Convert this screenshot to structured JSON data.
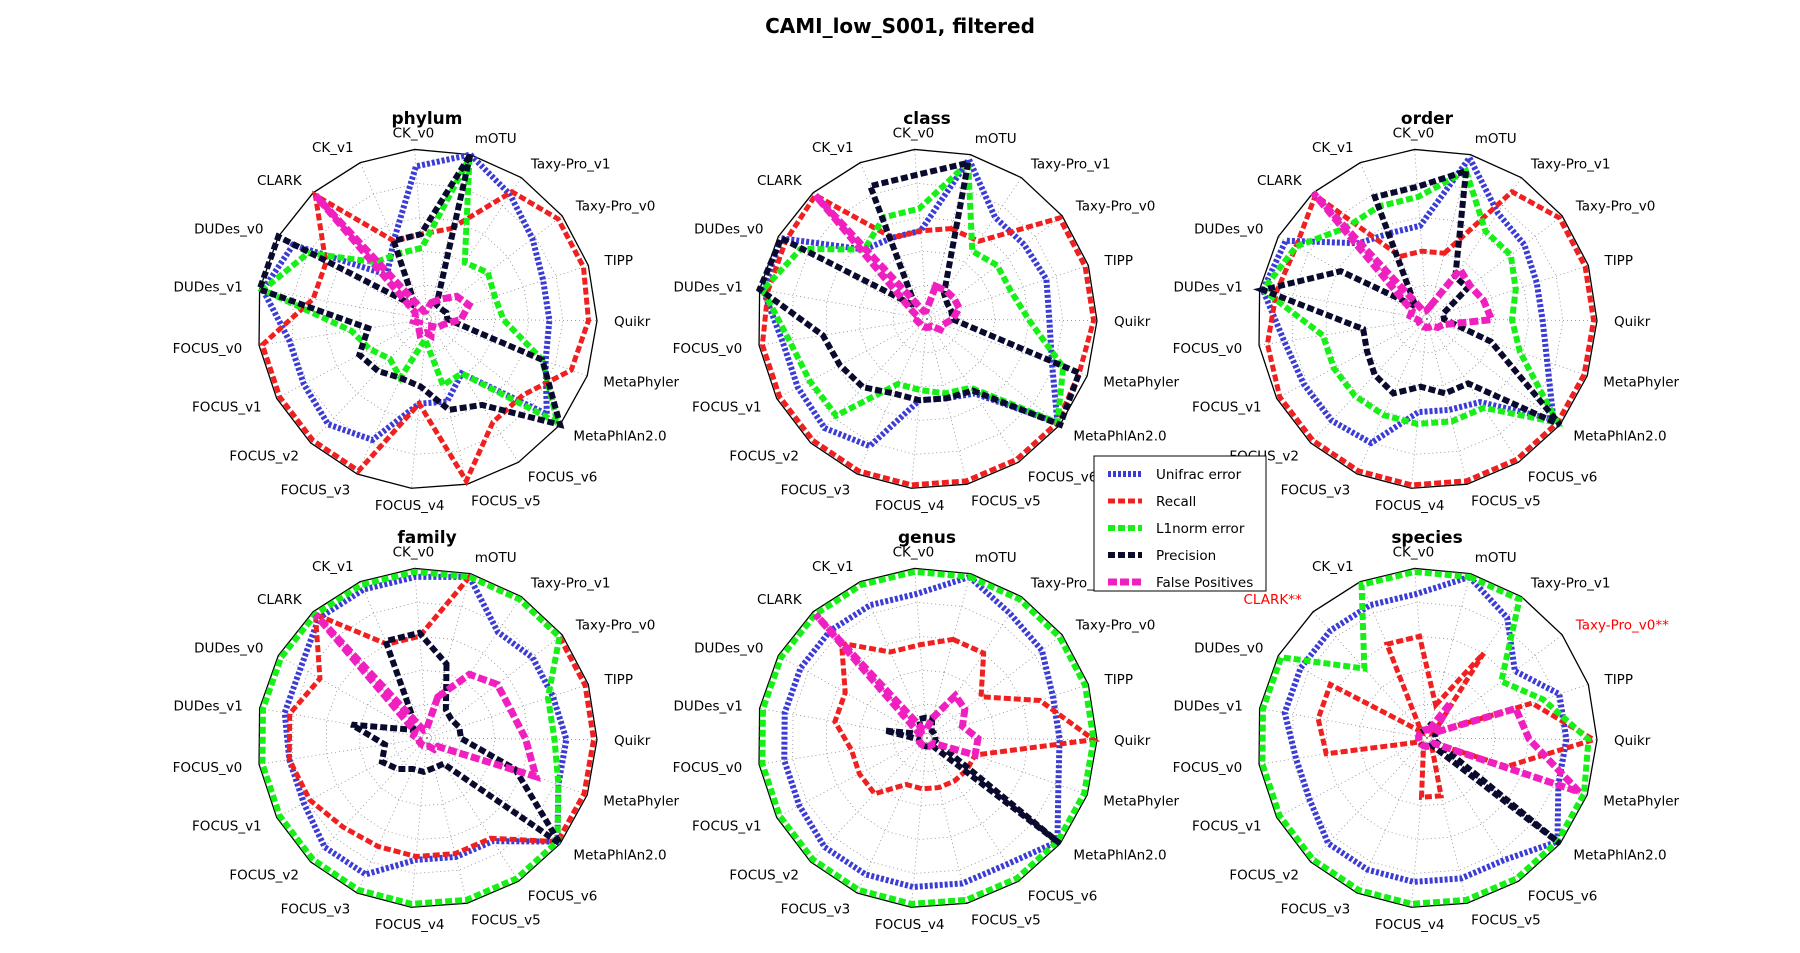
{
  "figure": {
    "title": "CAMI_low_S001, filtered"
  },
  "style": {
    "colors": {
      "Unifrac error": "#3b3bd6",
      "Recall": "#f02020",
      "L1norm error": "#16f016",
      "Precision": "#0a0a2e",
      "False Positives": "#f020c0"
    },
    "highlight_label_color": "#ff0000",
    "grid": "dotted gray"
  },
  "legend": {
    "placement": "center",
    "entries": [
      "Unifrac error",
      "Recall",
      "L1norm error",
      "Precision",
      "False Positives"
    ]
  },
  "chart_data": [
    {
      "type": "radar",
      "title": "phylum",
      "rlim": [
        0,
        1
      ],
      "axes": [
        "mOTU",
        "Taxy-Pro_v1",
        "Taxy-Pro_v0",
        "TIPP",
        "Quikr",
        "MetaPhyler",
        "MetaPhlAn2.0",
        "FOCUS_v6",
        "FOCUS_v5",
        "FOCUS_v4",
        "FOCUS_v3",
        "FOCUS_v2",
        "FOCUS_v1",
        "FOCUS_v0",
        "DUDes_v1",
        "DUDes_v0",
        "CLARK",
        "CK_v1",
        "CK_v0"
      ],
      "series": [
        {
          "name": "Unifrac error",
          "values": [
            1.0,
            0.88,
            0.78,
            0.72,
            0.72,
            0.74,
            0.9,
            0.38,
            0.5,
            0.5,
            0.78,
            0.85,
            0.82,
            0.82,
            0.98,
            0.9,
            0.35,
            0.5,
            0.9
          ]
        },
        {
          "name": "Recall",
          "values": [
            0.55,
            0.9,
            0.97,
            0.97,
            0.95,
            0.9,
            0.72,
            0.72,
            0.98,
            0.5,
            0.98,
            0.98,
            0.98,
            0.98,
            0.68,
            0.68,
            0.98,
            0.5,
            0.5
          ]
        },
        {
          "name": "L1norm error",
          "values": [
            0.98,
            0.4,
            0.45,
            0.42,
            0.45,
            0.72,
            0.98,
            0.38,
            0.4,
            0.12,
            0.38,
            0.32,
            0.38,
            0.45,
            0.98,
            0.8,
            0.45,
            0.42,
            0.42
          ]
        },
        {
          "name": "Precision",
          "values": [
            1.0,
            0.1,
            0.1,
            0.12,
            0.12,
            0.72,
            1.0,
            0.6,
            0.55,
            0.4,
            0.38,
            0.42,
            0.45,
            0.35,
            1.0,
            1.0,
            0.1,
            0.5,
            0.5
          ]
        },
        {
          "name": "False Positives",
          "values": [
            0.1,
            0.14,
            0.22,
            0.26,
            0.2,
            0.1,
            0.08,
            0.05,
            0.1,
            0.08,
            0.1,
            0.07,
            0.05,
            0.08,
            0.07,
            0.08,
            0.98,
            0.05,
            0.05
          ]
        }
      ]
    },
    {
      "type": "radar",
      "title": "class",
      "rlim": [
        0,
        1
      ],
      "axes": [
        "mOTU",
        "Taxy-Pro_v1",
        "Taxy-Pro_v0",
        "TIPP",
        "Quikr",
        "MetaPhyler",
        "MetaPhlAn2.0",
        "FOCUS_v6",
        "FOCUS_v5",
        "FOCUS_v4",
        "FOCUS_v3",
        "FOCUS_v2",
        "FOCUS_v1",
        "FOCUS_v0",
        "DUDes_v1",
        "DUDes_v0",
        "CLARK",
        "CK_v1",
        "CK_v0"
      ],
      "series": [
        {
          "name": "Unifrac error",
          "values": [
            0.97,
            0.72,
            0.72,
            0.74,
            0.72,
            0.78,
            0.98,
            0.52,
            0.48,
            0.48,
            0.82,
            0.88,
            0.86,
            0.86,
            0.98,
            0.98,
            0.55,
            0.52,
            0.52
          ]
        },
        {
          "name": "Recall",
          "values": [
            0.55,
            0.55,
            0.98,
            0.98,
            0.98,
            0.95,
            0.98,
            0.98,
            0.98,
            0.98,
            0.98,
            0.98,
            0.98,
            0.98,
            0.95,
            0.95,
            0.98,
            0.52,
            0.52
          ]
        },
        {
          "name": "L1norm error",
          "values": [
            0.95,
            0.48,
            0.52,
            0.52,
            0.6,
            0.85,
            0.98,
            0.48,
            0.45,
            0.42,
            0.42,
            0.78,
            0.78,
            0.82,
            0.98,
            0.85,
            0.55,
            0.65,
            0.65
          ]
        },
        {
          "name": "Precision",
          "values": [
            0.95,
            0.18,
            0.15,
            0.15,
            0.15,
            0.95,
            1.0,
            0.5,
            0.48,
            0.48,
            0.48,
            0.55,
            0.58,
            0.62,
            1.0,
            0.98,
            0.1,
            0.85,
            0.85
          ]
        },
        {
          "name": "False Positives",
          "values": [
            0.2,
            0.2,
            0.2,
            0.2,
            0.15,
            0.1,
            0.1,
            0.05,
            0.05,
            0.05,
            0.05,
            0.05,
            0.05,
            0.06,
            0.05,
            0.1,
            0.98,
            0.05,
            0.05
          ]
        }
      ]
    },
    {
      "type": "radar",
      "title": "order",
      "rlim": [
        0,
        1
      ],
      "axes": [
        "mOTU",
        "Taxy-Pro_v1",
        "Taxy-Pro_v0",
        "TIPP",
        "Quikr",
        "MetaPhyler",
        "MetaPhlAn2.0",
        "FOCUS_v6",
        "FOCUS_v5",
        "FOCUS_v4",
        "FOCUS_v3",
        "FOCUS_v2",
        "FOCUS_v1",
        "FOCUS_v0",
        "DUDes_v1",
        "DUDes_v0",
        "CLARK",
        "CK_v1",
        "CK_v0"
      ],
      "series": [
        {
          "name": "Unifrac error",
          "values": [
            0.98,
            0.75,
            0.72,
            0.68,
            0.68,
            0.75,
            0.95,
            0.58,
            0.55,
            0.55,
            0.8,
            0.82,
            0.82,
            0.85,
            0.98,
            0.95,
            0.6,
            0.55,
            0.55
          ]
        },
        {
          "name": "Recall",
          "values": [
            0.4,
            0.9,
            0.98,
            0.98,
            0.98,
            0.98,
            0.98,
            0.98,
            0.98,
            0.98,
            0.98,
            0.98,
            0.98,
            0.95,
            0.9,
            0.88,
            0.98,
            0.4,
            0.4
          ]
        },
        {
          "name": "L1norm error",
          "values": [
            0.9,
            0.62,
            0.62,
            0.55,
            0.5,
            0.58,
            0.98,
            0.62,
            0.62,
            0.62,
            0.62,
            0.62,
            0.62,
            0.62,
            0.98,
            0.88,
            0.72,
            0.72,
            0.72
          ]
        },
        {
          "name": "Precision",
          "values": [
            0.9,
            0.3,
            0.3,
            0.1,
            0.1,
            0.4,
            1.0,
            0.45,
            0.45,
            0.4,
            0.48,
            0.45,
            0.4,
            0.38,
            0.98,
            0.58,
            0.1,
            0.78,
            0.78
          ]
        },
        {
          "name": "False Positives",
          "values": [
            0.08,
            0.35,
            0.32,
            0.35,
            0.38,
            0.1,
            0.08,
            0.05,
            0.05,
            0.05,
            0.05,
            0.05,
            0.05,
            0.05,
            0.1,
            0.1,
            1.0,
            0.05,
            0.05
          ]
        }
      ]
    },
    {
      "type": "radar",
      "title": "family",
      "rlim": [
        0,
        1
      ],
      "axes": [
        "mOTU",
        "Taxy-Pro_v1",
        "Taxy-Pro_v0",
        "TIPP",
        "Quikr",
        "MetaPhyler",
        "MetaPhlAn2.0",
        "FOCUS_v6",
        "FOCUS_v5",
        "FOCUS_v4",
        "FOCUS_v3",
        "FOCUS_v2",
        "FOCUS_v1",
        "FOCUS_v0",
        "DUDes_v1",
        "DUDes_v0",
        "CLARK",
        "CK_v1",
        "CK_v0"
      ],
      "series": [
        {
          "name": "Unifrac error",
          "values": [
            0.98,
            0.75,
            0.78,
            0.78,
            0.82,
            0.82,
            0.98,
            0.72,
            0.72,
            0.72,
            0.88,
            0.88,
            0.82,
            0.82,
            0.85,
            0.85,
            0.95,
            0.95,
            0.95
          ]
        },
        {
          "name": "Recall",
          "values": [
            0.98,
            0.98,
            0.98,
            0.98,
            0.98,
            0.98,
            0.98,
            0.7,
            0.7,
            0.7,
            0.7,
            0.72,
            0.78,
            0.82,
            0.82,
            0.72,
            0.98,
            0.6,
            0.6
          ]
        },
        {
          "name": "L1norm error",
          "values": [
            0.98,
            0.98,
            0.98,
            0.75,
            0.75,
            0.82,
            0.98,
            0.98,
            0.98,
            0.98,
            0.98,
            0.98,
            0.98,
            0.98,
            0.98,
            0.98,
            0.98,
            0.98,
            0.98
          ]
        },
        {
          "name": "Precision",
          "values": [
            0.45,
            0.2,
            0.18,
            0.2,
            0.2,
            0.55,
            1.0,
            0.18,
            0.18,
            0.2,
            0.2,
            0.25,
            0.3,
            0.25,
            0.45,
            0.1,
            0.1,
            0.62,
            0.62
          ]
        },
        {
          "name": "False Positives",
          "values": [
            0.25,
            0.45,
            0.52,
            0.52,
            0.58,
            0.68,
            0.08,
            0.08,
            0.05,
            0.05,
            0.05,
            0.05,
            0.05,
            0.05,
            0.08,
            0.08,
            0.98,
            0.05,
            0.05
          ]
        }
      ]
    },
    {
      "type": "radar",
      "title": "genus",
      "rlim": [
        0,
        1
      ],
      "axes": [
        "mOTU",
        "Taxy-Pro_v1",
        "Taxy-Pro_v0",
        "TIPP",
        "Quikr",
        "MetaPhyler",
        "MetaPhlAn2.0",
        "FOCUS_v6",
        "FOCUS_v5",
        "FOCUS_v4",
        "FOCUS_v3",
        "FOCUS_v2",
        "FOCUS_v1",
        "FOCUS_v0",
        "DUDes_v1",
        "DUDes_v0",
        "CLARK",
        "CK_v1",
        "CK_v0"
      ],
      "series": [
        {
          "name": "Unifrac error",
          "values": [
            0.98,
            0.88,
            0.85,
            0.78,
            0.78,
            0.82,
            0.98,
            0.88,
            0.88,
            0.88,
            0.88,
            0.88,
            0.85,
            0.85,
            0.85,
            0.85,
            0.85,
            0.85,
            0.85
          ]
        },
        {
          "name": "Recall",
          "values": [
            0.6,
            0.6,
            0.4,
            0.7,
            0.98,
            0.3,
            0.3,
            0.3,
            0.3,
            0.3,
            0.3,
            0.45,
            0.45,
            0.45,
            0.55,
            0.55,
            0.75,
            0.55,
            0.55
          ]
        },
        {
          "name": "L1norm error",
          "values": [
            0.98,
            0.98,
            0.98,
            0.98,
            0.98,
            0.98,
            0.98,
            0.98,
            0.98,
            0.98,
            0.98,
            0.98,
            0.98,
            0.98,
            0.98,
            0.98,
            0.98,
            0.98,
            0.98
          ]
        },
        {
          "name": "Precision",
          "values": [
            0.12,
            0.05,
            0.05,
            0.05,
            0.05,
            0.05,
            1.0,
            0.05,
            0.05,
            0.05,
            0.05,
            0.05,
            0.05,
            0.05,
            0.25,
            0.05,
            0.05,
            0.12,
            0.12
          ]
        },
        {
          "name": "False Positives",
          "values": [
            0.12,
            0.3,
            0.28,
            0.22,
            0.3,
            0.3,
            0.05,
            0.05,
            0.05,
            0.05,
            0.05,
            0.05,
            0.05,
            0.05,
            0.05,
            0.05,
            0.98,
            0.05,
            0.05
          ]
        }
      ]
    },
    {
      "type": "radar",
      "title": "species",
      "rlim": [
        0,
        1
      ],
      "highlight_axes": [
        "CLARK**",
        "Taxy-Pro_v0**"
      ],
      "axes": [
        "mOTU",
        "Taxy-Pro_v1",
        "Taxy-Pro_v0**",
        "TIPP",
        "Quikr",
        "MetaPhyler",
        "MetaPhlAn2.0",
        "FOCUS_v6",
        "FOCUS_v5",
        "FOCUS_v4",
        "FOCUS_v3",
        "FOCUS_v2",
        "FOCUS_v1",
        "FOCUS_v0",
        "DUDes_v1",
        "DUDes_v0",
        "CLARK**",
        "CK_v1",
        "CK_v0"
      ],
      "series": [
        {
          "name": "Unifrac error",
          "values": [
            0.98,
            0.85,
            0.65,
            0.82,
            0.82,
            0.82,
            0.98,
            0.85,
            0.85,
            0.85,
            0.85,
            0.85,
            0.78,
            0.78,
            0.85,
            0.85,
            0.85,
            0.85,
            0.85
          ]
        },
        {
          "name": "Recall",
          "values": [
            0.2,
            0.6,
            0.05,
            0.65,
            0.98,
            0.5,
            0.05,
            0.05,
            0.35,
            0.35,
            0.05,
            0.05,
            0.05,
            0.6,
            0.65,
            0.65,
            0.05,
            0.6,
            0.6
          ]
        },
        {
          "name": "L1norm error",
          "values": [
            0.98,
            0.98,
            0.55,
            0.72,
            0.95,
            0.98,
            0.98,
            0.98,
            0.98,
            0.98,
            0.98,
            0.98,
            0.98,
            0.98,
            0.98,
            0.98,
            0.55,
            0.98,
            0.98
          ]
        },
        {
          "name": "Precision",
          "values": [
            0.08,
            0.08,
            0.08,
            0.05,
            0.05,
            0.05,
            1.0,
            0.05,
            0.05,
            0.05,
            0.05,
            0.05,
            0.05,
            0.05,
            0.05,
            0.05,
            0.05,
            0.05,
            0.05
          ]
        },
        {
          "name": "False Positives",
          "values": [
            0.05,
            0.25,
            0.05,
            0.55,
            0.6,
            0.95,
            0.05,
            0.05,
            0.05,
            0.05,
            0.05,
            0.05,
            0.05,
            0.05,
            0.05,
            0.05,
            0.05,
            0.05,
            0.05
          ]
        }
      ]
    }
  ]
}
